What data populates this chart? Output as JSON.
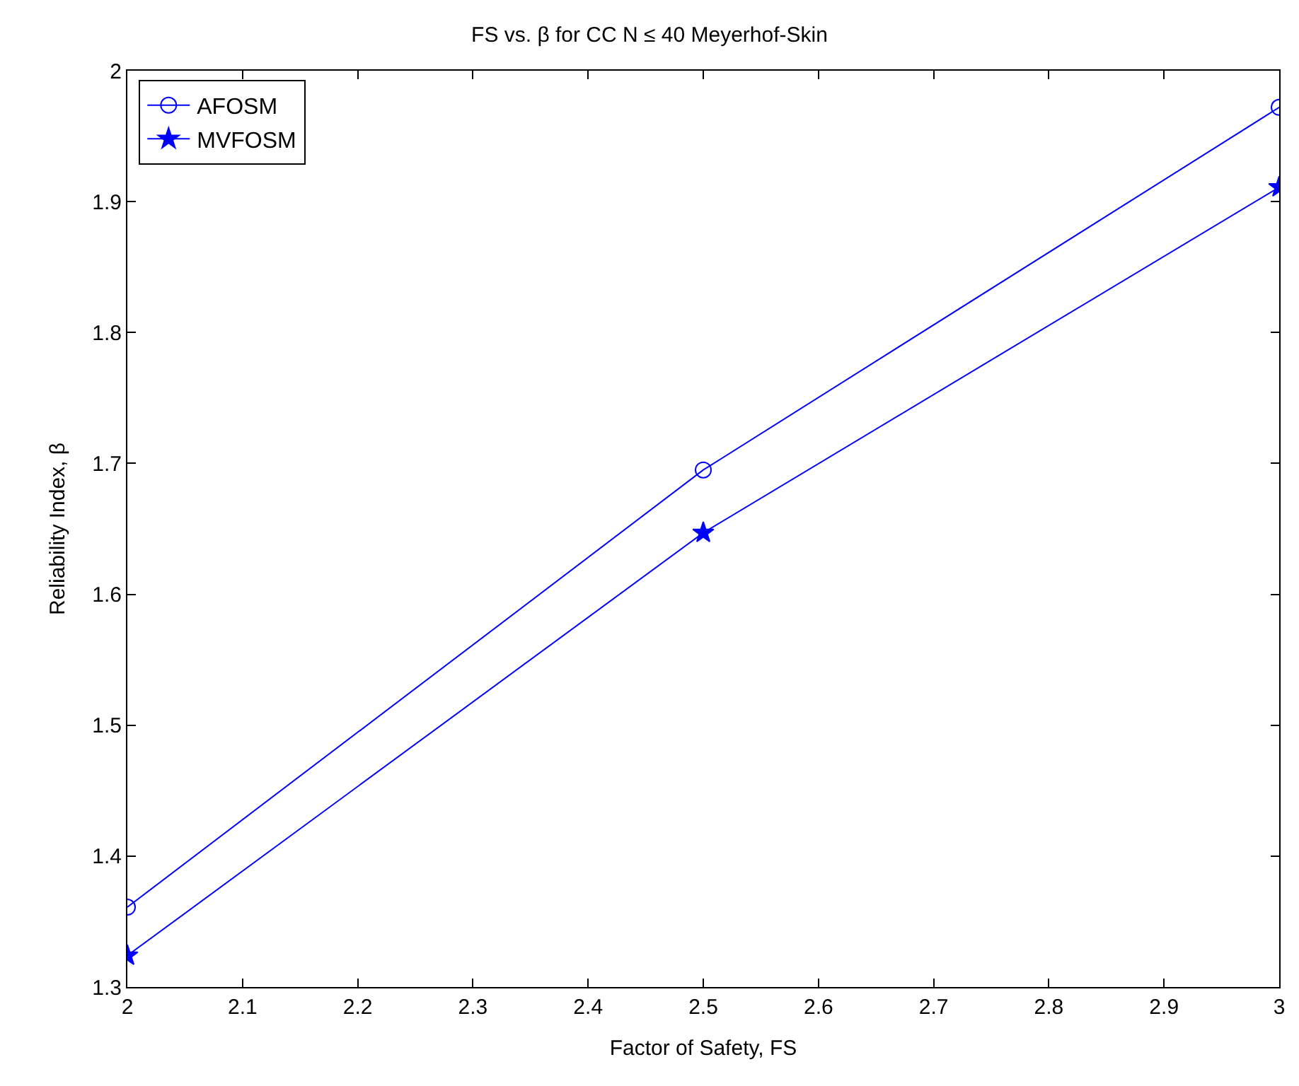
{
  "chart_data": {
    "type": "line",
    "title": "FS vs. β for CC N ≤ 40 Meyerhof-Skin",
    "xlabel": "Factor of Safety, FS",
    "ylabel": "Reliability Index, β",
    "x": [
      2,
      2.5,
      3
    ],
    "series": [
      {
        "name": "AFOSM",
        "color": "#0000ff",
        "values": [
          1.361,
          1.695,
          1.972
        ],
        "marker": "circle"
      },
      {
        "name": "MVFOSM",
        "color": "#0000ff",
        "values": [
          1.324,
          1.647,
          1.911
        ],
        "marker": "star"
      }
    ],
    "xlim": [
      2,
      3
    ],
    "xticks": [
      2,
      2.1,
      2.2,
      2.3,
      2.4,
      2.5,
      2.6,
      2.7,
      2.8,
      2.9,
      3
    ],
    "ylim": [
      1.3,
      2
    ],
    "yticks": [
      1.3,
      1.4,
      1.5,
      1.6,
      1.7,
      1.8,
      1.9,
      2
    ],
    "legend": "top left",
    "line_style": "solid"
  }
}
